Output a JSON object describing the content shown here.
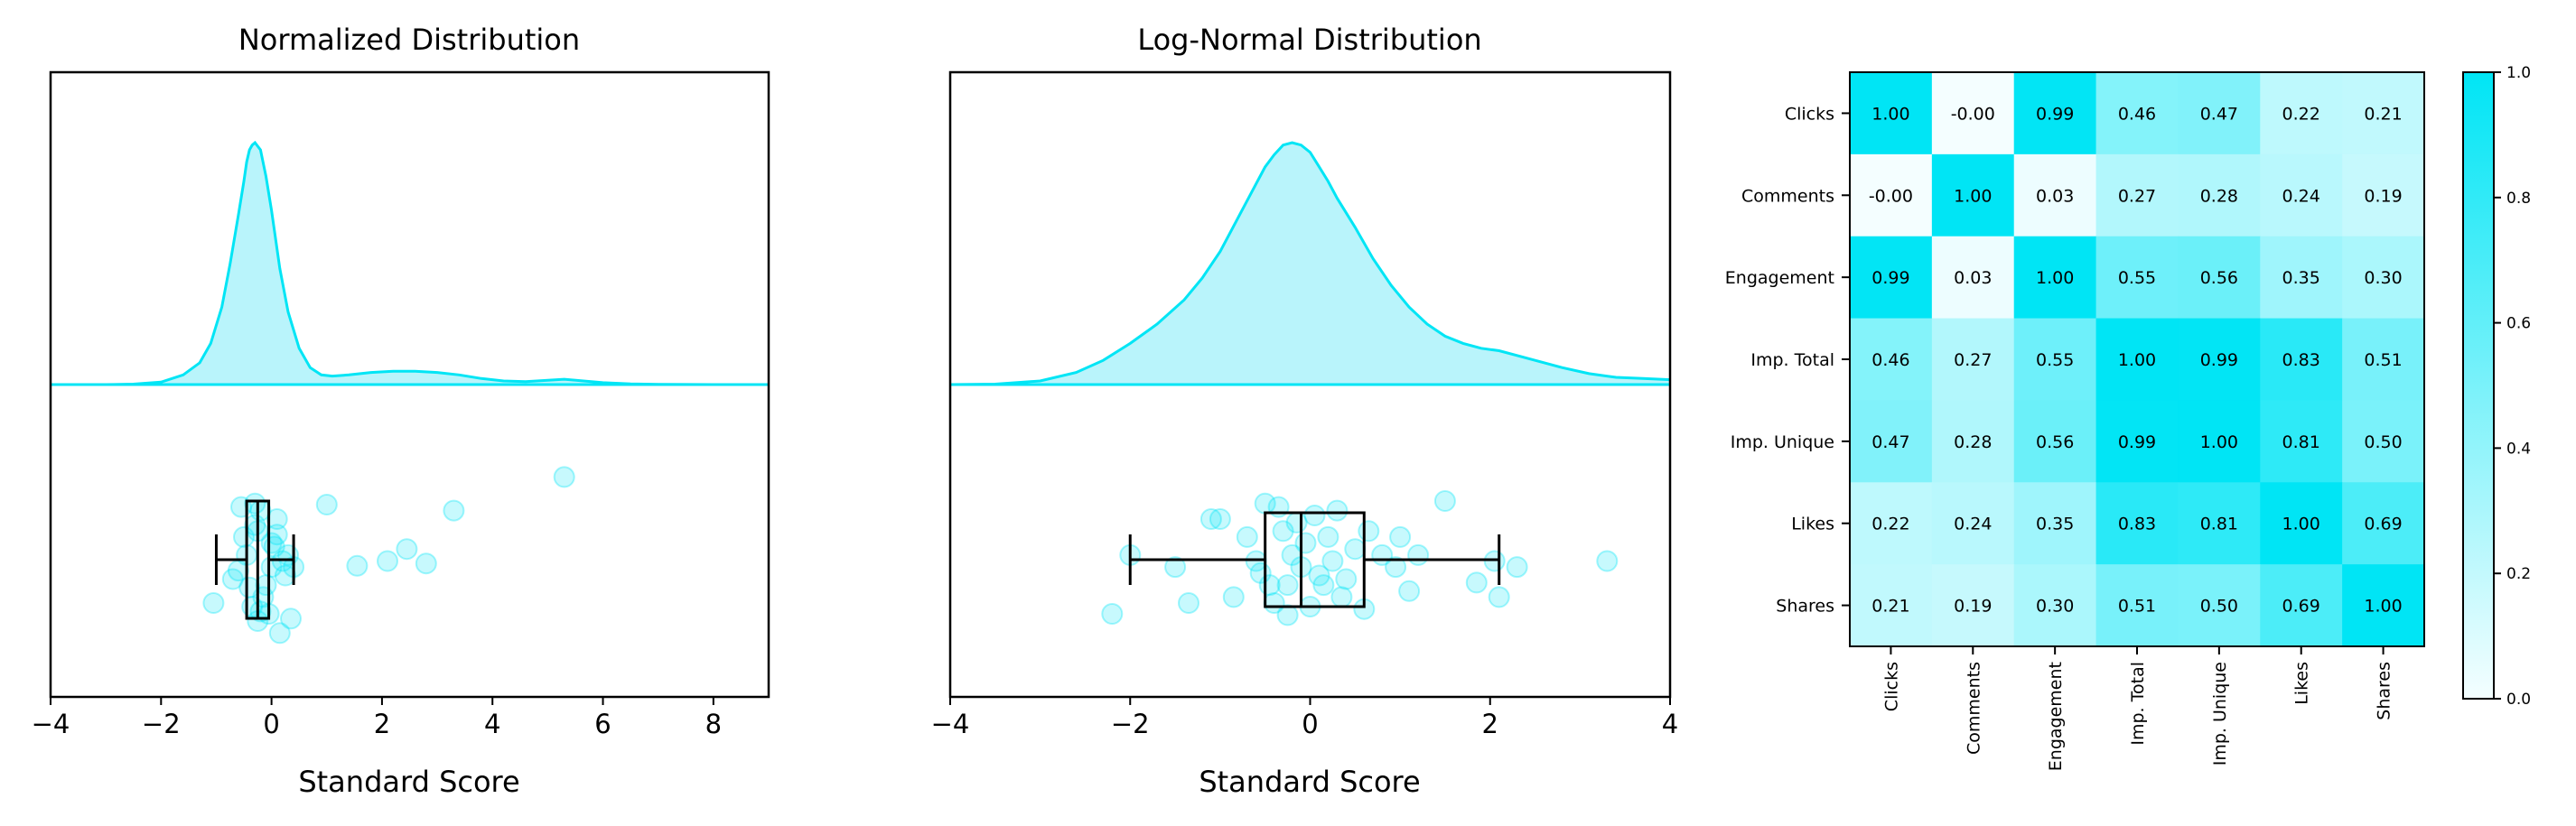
{
  "colors": {
    "accent": "#00e5f5",
    "fill": "#b9f4fb",
    "point": "#00e5f5",
    "box": "#000000",
    "cmap_low": "#f4feff",
    "cmap_high": "#00e5f5"
  },
  "chart_data": [
    {
      "type": "area",
      "subtype": "density-with-boxplot",
      "title": "Normalized Distribution",
      "xlabel": "Standard Score",
      "ylabel": "",
      "xlim": [
        -4,
        9
      ],
      "xticks": [
        -4,
        -2,
        0,
        2,
        4,
        6,
        8
      ],
      "xtick_labels": [
        "−4",
        "−2",
        "0",
        "2",
        "4",
        "6",
        "8"
      ],
      "density": {
        "x": [
          -4,
          -3,
          -2.5,
          -2,
          -1.6,
          -1.3,
          -1.1,
          -0.9,
          -0.75,
          -0.6,
          -0.5,
          -0.45,
          -0.4,
          -0.35,
          -0.3,
          -0.2,
          -0.1,
          0,
          0.15,
          0.3,
          0.5,
          0.7,
          0.9,
          1.1,
          1.4,
          1.8,
          2.2,
          2.6,
          3.0,
          3.4,
          3.8,
          4.2,
          4.6,
          5.0,
          5.3,
          5.6,
          6.0,
          6.5,
          7,
          8,
          9
        ],
        "y": [
          0.0,
          0.0,
          0.002,
          0.01,
          0.04,
          0.09,
          0.17,
          0.32,
          0.5,
          0.7,
          0.84,
          0.92,
          0.97,
          0.99,
          1.0,
          0.97,
          0.86,
          0.72,
          0.48,
          0.3,
          0.15,
          0.07,
          0.04,
          0.035,
          0.04,
          0.05,
          0.055,
          0.055,
          0.05,
          0.04,
          0.025,
          0.015,
          0.012,
          0.018,
          0.022,
          0.016,
          0.008,
          0.003,
          0.001,
          0.0,
          0.0
        ]
      },
      "points": {
        "x": [
          -0.25,
          -0.45,
          -0.2,
          0.0,
          -0.35,
          -0.1,
          0.15,
          -0.5,
          -0.3,
          0.05,
          -0.15,
          0.25,
          -0.4,
          0.3,
          -0.6,
          -1.05,
          -0.05,
          0.1,
          -0.25,
          0.35,
          0.2,
          -0.55,
          -0.2,
          0.0,
          0.4,
          1.0,
          1.55,
          2.1,
          2.45,
          2.8,
          3.3,
          5.3,
          -0.7,
          -0.3,
          0.1
        ],
        "y": [
          0.0,
          0.55,
          0.92,
          0.45,
          0.12,
          0.3,
          -0.1,
          0.7,
          0.98,
          0.62,
          0.2,
          0.38,
          0.28,
          0.55,
          0.42,
          0.15,
          0.06,
          0.85,
          0.75,
          0.02,
          0.5,
          0.95,
          0.08,
          0.65,
          0.45,
          0.97,
          0.46,
          0.5,
          0.6,
          0.48,
          0.92,
          1.2,
          0.35,
          0.8,
          0.72
        ]
      },
      "box": {
        "whisker_low": -1.0,
        "q1": -0.45,
        "median": -0.25,
        "q3": -0.05,
        "whisker_high": 0.4
      }
    },
    {
      "type": "area",
      "subtype": "density-with-boxplot",
      "title": "Log-Normal Distribution",
      "xlabel": "Standard Score",
      "ylabel": "",
      "xlim": [
        -4,
        4
      ],
      "xticks": [
        -4,
        -2,
        0,
        2,
        4
      ],
      "xtick_labels": [
        "−4",
        "−2",
        "0",
        "2",
        "4"
      ],
      "density": {
        "x": [
          -4,
          -3.5,
          -3,
          -2.6,
          -2.3,
          -2.0,
          -1.7,
          -1.4,
          -1.2,
          -1.0,
          -0.8,
          -0.6,
          -0.5,
          -0.4,
          -0.3,
          -0.2,
          -0.1,
          0.0,
          0.1,
          0.2,
          0.3,
          0.5,
          0.7,
          0.9,
          1.1,
          1.3,
          1.5,
          1.7,
          1.9,
          2.1,
          2.3,
          2.5,
          2.8,
          3.1,
          3.4,
          3.7,
          4.0
        ],
        "y": [
          0.0,
          0.002,
          0.015,
          0.05,
          0.1,
          0.17,
          0.25,
          0.35,
          0.44,
          0.55,
          0.69,
          0.83,
          0.9,
          0.95,
          0.99,
          1.0,
          0.99,
          0.96,
          0.9,
          0.84,
          0.77,
          0.65,
          0.52,
          0.41,
          0.32,
          0.25,
          0.2,
          0.17,
          0.15,
          0.14,
          0.12,
          0.1,
          0.07,
          0.045,
          0.03,
          0.025,
          0.02
        ]
      },
      "points": {
        "x": [
          -2.2,
          -2.0,
          -1.5,
          -1.35,
          -1.1,
          -1.0,
          -0.85,
          -0.7,
          -0.6,
          -0.55,
          -0.45,
          -0.4,
          -0.35,
          -0.3,
          -0.25,
          -0.2,
          -0.15,
          -0.1,
          -0.05,
          0.0,
          0.05,
          0.1,
          0.2,
          0.25,
          0.3,
          0.4,
          0.5,
          0.6,
          0.65,
          0.8,
          0.95,
          1.0,
          1.1,
          1.2,
          1.5,
          1.85,
          2.05,
          2.1,
          2.3,
          3.3,
          -0.5,
          0.15,
          0.35,
          -0.25
        ],
        "y": [
          0.06,
          0.55,
          0.45,
          0.15,
          0.85,
          0.85,
          0.2,
          0.7,
          0.5,
          0.4,
          0.3,
          0.15,
          0.95,
          0.75,
          0.3,
          0.55,
          0.82,
          0.45,
          0.65,
          0.12,
          0.88,
          0.38,
          0.7,
          0.5,
          0.92,
          0.35,
          0.6,
          0.1,
          0.75,
          0.55,
          0.45,
          0.7,
          0.25,
          0.55,
          1.0,
          0.32,
          0.5,
          0.2,
          0.45,
          0.5,
          0.98,
          0.3,
          0.2,
          0.05
        ]
      },
      "box": {
        "whisker_low": -2.0,
        "q1": -0.5,
        "median": -0.1,
        "q3": 0.6,
        "whisker_high": 2.1
      }
    },
    {
      "type": "heatmap",
      "title": "",
      "labels": [
        "Clicks",
        "Comments",
        "Engagement",
        "Imp. Total",
        "Imp. Unique",
        "Likes",
        "Shares"
      ],
      "values": [
        [
          1.0,
          -0.0,
          0.99,
          0.46,
          0.47,
          0.22,
          0.21
        ],
        [
          -0.0,
          1.0,
          0.03,
          0.27,
          0.28,
          0.24,
          0.19
        ],
        [
          0.99,
          0.03,
          1.0,
          0.55,
          0.56,
          0.35,
          0.3
        ],
        [
          0.46,
          0.27,
          0.55,
          1.0,
          0.99,
          0.83,
          0.51
        ],
        [
          0.47,
          0.28,
          0.56,
          0.99,
          1.0,
          0.81,
          0.5
        ],
        [
          0.22,
          0.24,
          0.35,
          0.83,
          0.81,
          1.0,
          0.69
        ],
        [
          0.21,
          0.19,
          0.3,
          0.51,
          0.5,
          0.69,
          1.0
        ]
      ],
      "cell_labels": [
        [
          "1.00",
          "-0.00",
          "0.99",
          "0.46",
          "0.47",
          "0.22",
          "0.21"
        ],
        [
          "-0.00",
          "1.00",
          "0.03",
          "0.27",
          "0.28",
          "0.24",
          "0.19"
        ],
        [
          "0.99",
          "0.03",
          "1.00",
          "0.55",
          "0.56",
          "0.35",
          "0.30"
        ],
        [
          "0.46",
          "0.27",
          "0.55",
          "1.00",
          "0.99",
          "0.83",
          "0.51"
        ],
        [
          "0.47",
          "0.28",
          "0.56",
          "0.99",
          "1.00",
          "0.81",
          "0.50"
        ],
        [
          "0.22",
          "0.24",
          "0.35",
          "0.83",
          "0.81",
          "1.00",
          "0.69"
        ],
        [
          "0.21",
          "0.19",
          "0.30",
          "0.51",
          "0.50",
          "0.69",
          "1.00"
        ]
      ],
      "colorbar": {
        "range": [
          0.0,
          1.0
        ],
        "ticks": [
          0.0,
          0.2,
          0.4,
          0.6,
          0.8,
          1.0
        ],
        "tick_labels": [
          "0.0",
          "0.2",
          "0.4",
          "0.6",
          "0.8",
          "1.0"
        ]
      }
    }
  ]
}
